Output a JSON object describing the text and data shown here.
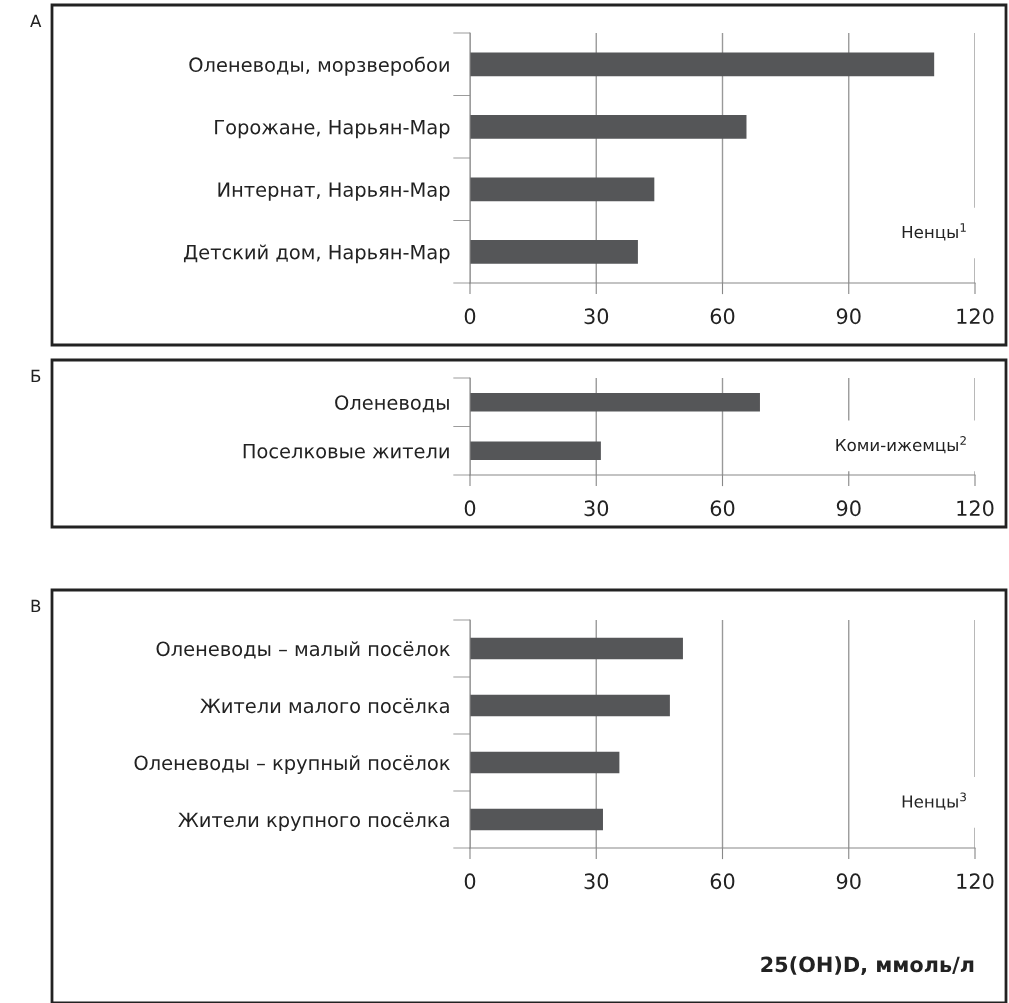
{
  "chart_data": [
    {
      "type": "bar",
      "orientation": "horizontal",
      "categories": [
        "Оленеводы, морзверобои",
        "Горожане, Нарьян-Мар",
        "Интернат, Нарьян-Мар",
        "Детский дом, Нарьян-Мар"
      ],
      "values": [
        110.3,
        65.7,
        43.8,
        39.9
      ],
      "color": "#555658",
      "xlim": [
        0,
        120
      ],
      "xticks": [
        0,
        30,
        60,
        90,
        120
      ],
      "grid": "x",
      "annotations": [
        "А",
        "Ненцы$^{1}$"
      ]
    },
    {
      "type": "bar",
      "orientation": "horizontal",
      "categories": [
        "Оленеводы",
        "Поселковые жители"
      ],
      "values": [
        68.9,
        31.1
      ],
      "color": "#555658",
      "xlim": [
        0,
        120
      ],
      "xticks": [
        0,
        30,
        60,
        90,
        120
      ],
      "grid": "x",
      "annotations": [
        "Б",
        "Коми-ижемцы$^{2}$"
      ]
    },
    {
      "type": "bar",
      "orientation": "horizontal",
      "categories": [
        "Оленеводы – малый посёлок",
        "Жители малого посёлка",
        "Оленеводы – крупный посёлок",
        "Жители крупного посёлка"
      ],
      "values": [
        50.6,
        47.5,
        35.5,
        31.6
      ],
      "color": "#555658",
      "xlim": [
        0,
        120
      ],
      "xticks": [
        0,
        30,
        60,
        90,
        120
      ],
      "grid": "x",
      "xlabel": "25(OH)D, ммоль/л",
      "annotations": [
        "В",
        "Ненцы$^{3}$"
      ]
    }
  ]
}
